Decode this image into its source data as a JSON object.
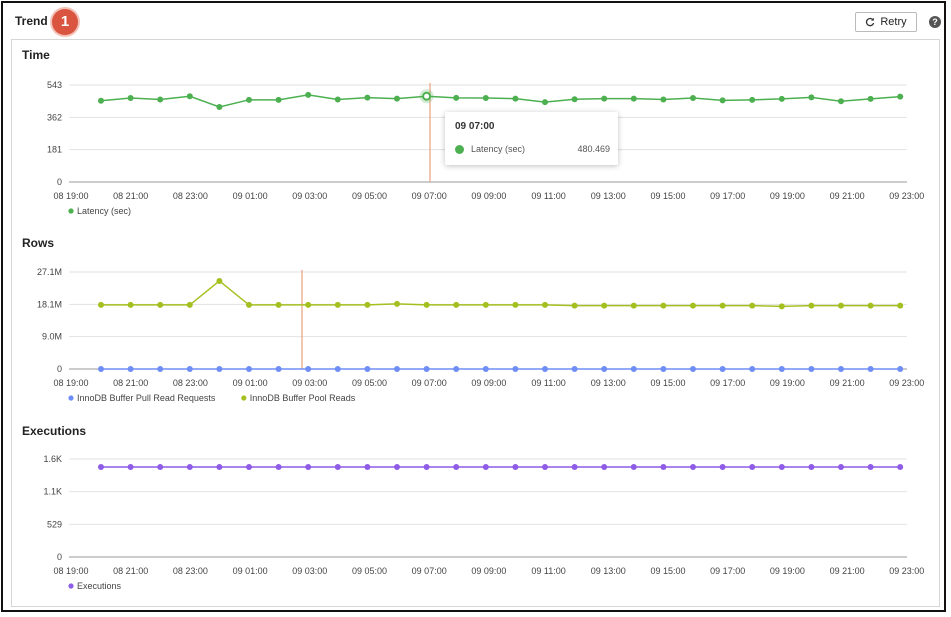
{
  "header": {
    "title": "Trend",
    "badge": "1",
    "retry_label": "Retry",
    "help": "?"
  },
  "tooltip": {
    "title": "09 07:00",
    "series": "Latency (sec)",
    "value": "480.469"
  },
  "colors": {
    "latency": "#4caf50",
    "requests": "#6f8ef5",
    "reads": "#a4c020",
    "executions": "#8e5ce6",
    "crosshair": "#e8a07f"
  },
  "chart_data": [
    {
      "type": "line",
      "title": "Time",
      "x_ticks": [
        "08 19:00",
        "08 21:00",
        "08 23:00",
        "09 01:00",
        "09 03:00",
        "09 05:00",
        "09 07:00",
        "09 09:00",
        "09 11:00",
        "09 13:00",
        "09 15:00",
        "09 17:00",
        "09 19:00",
        "09 21:00",
        "09 23:00"
      ],
      "y_ticks": [
        "543",
        "362",
        "181",
        "0"
      ],
      "ylim": [
        0,
        543
      ],
      "series": [
        {
          "name": "Latency (sec)",
          "color": "#4caf50",
          "values": [
            455,
            470,
            462,
            480,
            420,
            460,
            460,
            488,
            462,
            472,
            467,
            480,
            471,
            470,
            467,
            447,
            463,
            467,
            467,
            462,
            470,
            457,
            460,
            465,
            474,
            452,
            465,
            478
          ]
        }
      ]
    },
    {
      "type": "line",
      "title": "Rows",
      "x_ticks": [
        "08 19:00",
        "08 21:00",
        "08 23:00",
        "09 01:00",
        "09 03:00",
        "09 05:00",
        "09 07:00",
        "09 09:00",
        "09 11:00",
        "09 13:00",
        "09 15:00",
        "09 17:00",
        "09 19:00",
        "09 21:00",
        "09 23:00"
      ],
      "y_ticks": [
        "27.1M",
        "18.1M",
        "9.0M",
        "0"
      ],
      "ylim": [
        0,
        27.1
      ],
      "series": [
        {
          "name": "InnoDB Buffer Pull Read Requests",
          "color": "#6f8ef5",
          "values": [
            0,
            0,
            0,
            0,
            0,
            0,
            0,
            0,
            0,
            0,
            0,
            0,
            0,
            0,
            0,
            0,
            0,
            0,
            0,
            0,
            0,
            0,
            0,
            0,
            0,
            0,
            0,
            0
          ]
        },
        {
          "name": "InnoDB Buffer Pool Reads",
          "color": "#a4c020",
          "values": [
            17.9,
            17.9,
            17.9,
            17.9,
            24.6,
            17.9,
            17.9,
            17.9,
            17.9,
            17.9,
            18.2,
            17.9,
            17.9,
            17.9,
            17.9,
            17.9,
            17.7,
            17.7,
            17.7,
            17.7,
            17.7,
            17.7,
            17.7,
            17.5,
            17.7,
            17.7,
            17.7,
            17.7
          ]
        }
      ]
    },
    {
      "type": "line",
      "title": "Executions",
      "x_ticks": [
        "08 19:00",
        "08 21:00",
        "08 23:00",
        "09 01:00",
        "09 03:00",
        "09 05:00",
        "09 07:00",
        "09 09:00",
        "09 11:00",
        "09 13:00",
        "09 15:00",
        "09 17:00",
        "09 19:00",
        "09 21:00",
        "09 23:00"
      ],
      "y_ticks": [
        "1.6K",
        "1.1K",
        "529",
        "0"
      ],
      "ylim": [
        0,
        1.6
      ],
      "series": [
        {
          "name": "Executions",
          "color": "#8e5ce6",
          "values": [
            1.47,
            1.47,
            1.47,
            1.47,
            1.47,
            1.47,
            1.47,
            1.47,
            1.47,
            1.47,
            1.47,
            1.47,
            1.47,
            1.47,
            1.47,
            1.47,
            1.47,
            1.47,
            1.47,
            1.47,
            1.47,
            1.47,
            1.47,
            1.47,
            1.47,
            1.47,
            1.47,
            1.47
          ]
        }
      ]
    }
  ]
}
